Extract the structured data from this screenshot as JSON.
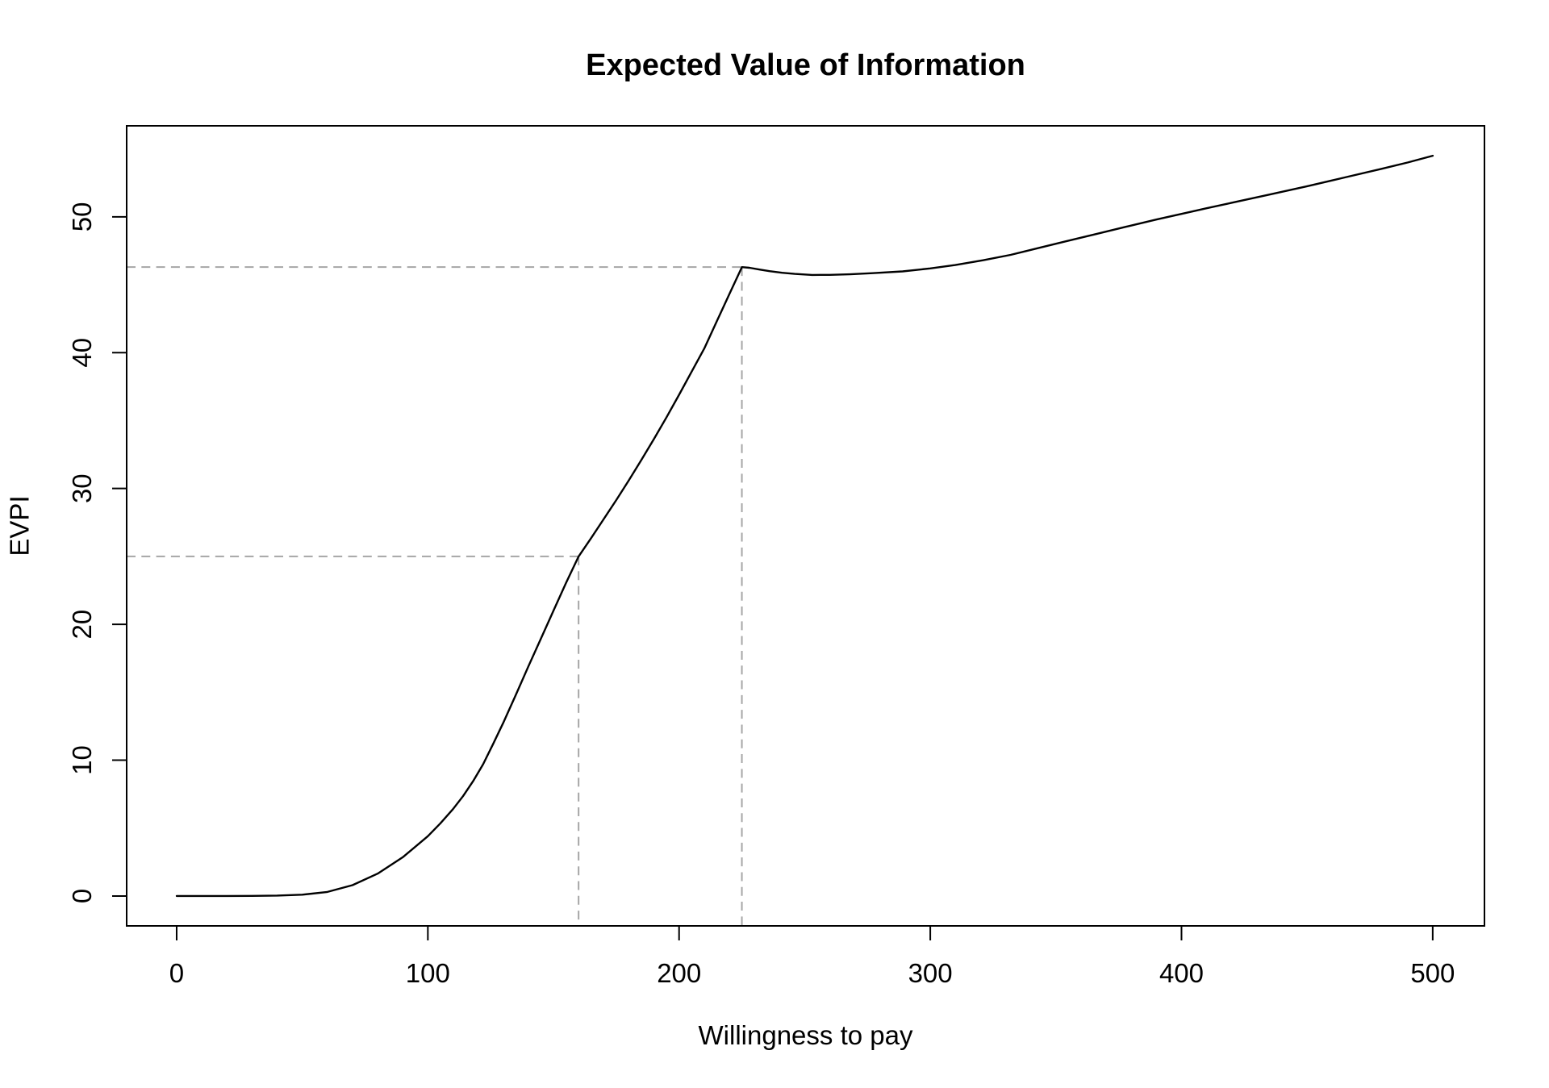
{
  "chart_data": {
    "type": "line",
    "title": "Expected Value of Information",
    "xlabel": "Willingness to pay",
    "ylabel": "EVPI",
    "x_ticks": [
      0,
      100,
      200,
      300,
      400,
      500
    ],
    "y_ticks": [
      0,
      10,
      20,
      30,
      40,
      50
    ],
    "xlim": [
      -19.9,
      520.6
    ],
    "ylim": [
      -2.2,
      56.7
    ],
    "grid": false,
    "legend": "none",
    "line_color": "#000000",
    "background": "#ffffff",
    "reference_line_color": "#a6a6a6",
    "reference_line_style": "dashed",
    "reference_points": [
      {
        "x": 160,
        "y": 25
      },
      {
        "x": 225,
        "y": 46.3
      }
    ],
    "series": [
      {
        "name": "EVPI",
        "points": [
          [
            0,
            0
          ],
          [
            10,
            0
          ],
          [
            20,
            0
          ],
          [
            30,
            0.01
          ],
          [
            40,
            0.03
          ],
          [
            50,
            0.1
          ],
          [
            60,
            0.3
          ],
          [
            70,
            0.8
          ],
          [
            80,
            1.65
          ],
          [
            90,
            2.85
          ],
          [
            100,
            4.4
          ],
          [
            105,
            5.35
          ],
          [
            110,
            6.4
          ],
          [
            114,
            7.35
          ],
          [
            118,
            8.45
          ],
          [
            122,
            9.7
          ],
          [
            126,
            11.2
          ],
          [
            130,
            12.75
          ],
          [
            135,
            14.8
          ],
          [
            140,
            16.9
          ],
          [
            145,
            18.95
          ],
          [
            150,
            21.0
          ],
          [
            155,
            23.05
          ],
          [
            160,
            25
          ],
          [
            165,
            26.35
          ],
          [
            170,
            27.75
          ],
          [
            175,
            29.15
          ],
          [
            180,
            30.6
          ],
          [
            185,
            32.1
          ],
          [
            190,
            33.65
          ],
          [
            195,
            35.25
          ],
          [
            200,
            36.9
          ],
          [
            205,
            38.6
          ],
          [
            210,
            40.3
          ],
          [
            215,
            42.3
          ],
          [
            220,
            44.3
          ],
          [
            225,
            46.3
          ],
          [
            228,
            46.25
          ],
          [
            232,
            46.12
          ],
          [
            236,
            46.0
          ],
          [
            241,
            45.88
          ],
          [
            246,
            45.8
          ],
          [
            253,
            45.72
          ],
          [
            260,
            45.73
          ],
          [
            268,
            45.77
          ],
          [
            277,
            45.85
          ],
          [
            289,
            45.98
          ],
          [
            300,
            46.2
          ],
          [
            310,
            46.45
          ],
          [
            321,
            46.8
          ],
          [
            332,
            47.2
          ],
          [
            343,
            47.7
          ],
          [
            354,
            48.2
          ],
          [
            366,
            48.73
          ],
          [
            378,
            49.27
          ],
          [
            390,
            49.8
          ],
          [
            402,
            50.3
          ],
          [
            410,
            50.63
          ],
          [
            418,
            50.95
          ],
          [
            434,
            51.6
          ],
          [
            450,
            52.25
          ],
          [
            465,
            52.9
          ],
          [
            480,
            53.55
          ],
          [
            490,
            54.0
          ],
          [
            500,
            54.5
          ]
        ]
      }
    ]
  }
}
